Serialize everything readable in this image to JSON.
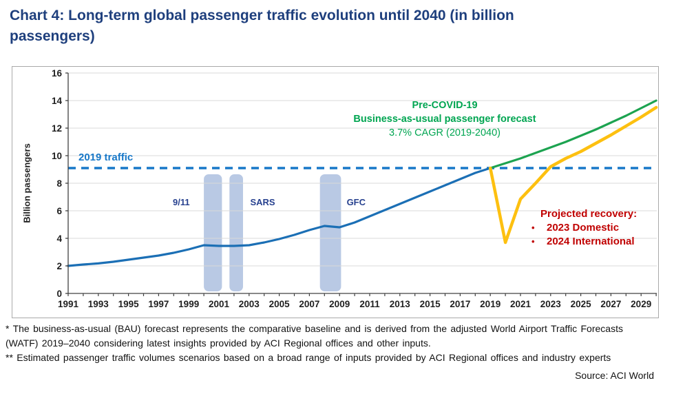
{
  "page": {
    "title": "Chart 4: Long-term global passenger traffic evolution until 2040 (in billion passengers)",
    "footnotes": [
      "* The business-as-usual (BAU) forecast represents the comparative baseline and is derived from the adjusted World Airport Traffic Forecasts (WATF) 2019–2040 considering latest insights provided by ACI Regional offices and other inputs.",
      "** Estimated passenger traffic volumes scenarios based on a broad range of inputs provided by ACI Regional offices and industry experts"
    ],
    "source": "Source: ACI World"
  },
  "chart_data": {
    "type": "line",
    "title": "Long-term global passenger traffic evolution until 2040 (in billion passengers)",
    "xlabel": "",
    "ylabel": "Billion passengers",
    "ylim": [
      0,
      16
    ],
    "ytick_step": 2,
    "x_range": [
      1991,
      2030
    ],
    "x_tick_labels": [
      1991,
      1993,
      1995,
      1997,
      1999,
      2001,
      2003,
      2005,
      2007,
      2009,
      2011,
      2013,
      2015,
      2017,
      2019,
      2021,
      2023,
      2025,
      2027,
      2029
    ],
    "grid": "horizontal-only",
    "legend": "none",
    "colors": {
      "historical": "#1b6fb5",
      "forecast": "#1ca350",
      "recovery": "#fdc010",
      "reference": "#1878c8",
      "band": "#b9c9e4",
      "event_label": "#27418f",
      "forecast_text": "#00a551",
      "recovery_text": "#c00000",
      "title_text": "#1e3f7d"
    },
    "series": [
      {
        "name": "Historical passenger traffic",
        "key": "historical",
        "start_year": 1991,
        "values": [
          2.0,
          2.1,
          2.18,
          2.3,
          2.45,
          2.6,
          2.75,
          2.95,
          3.2,
          3.5,
          3.45,
          3.45,
          3.5,
          3.7,
          3.95,
          4.25,
          4.6,
          4.9,
          4.8,
          5.15,
          5.6,
          6.05,
          6.5,
          6.95,
          7.4,
          7.85,
          8.3,
          8.75,
          9.1
        ]
      },
      {
        "name": "Pre-COVID-19 business-as-usual passenger forecast",
        "key": "forecast",
        "start_year": 2019,
        "values": [
          9.1,
          9.45,
          9.8,
          10.2,
          10.6,
          11.0,
          11.45,
          11.9,
          12.4,
          12.9,
          13.45,
          14.0
        ]
      },
      {
        "name": "Projected recovery",
        "key": "recovery",
        "start_year": 2019,
        "values": [
          9.1,
          3.7,
          6.85,
          8.0,
          9.2,
          9.8,
          10.3,
          10.9,
          11.5,
          12.15,
          12.8,
          13.5
        ]
      }
    ],
    "reference_line": {
      "label": "2019 traffic",
      "value": 9.1,
      "style": "dashed"
    },
    "event_bands": [
      {
        "label": "9/11",
        "from": 2000.0,
        "to": 2001.2,
        "label_year": 1998.5,
        "label_value": 6.65
      },
      {
        "label": "SARS",
        "from": 2001.7,
        "to": 2002.6,
        "label_year": 2003.9,
        "label_value": 6.65
      },
      {
        "label": "GFC",
        "from": 2007.7,
        "to": 2009.1,
        "label_year": 2010.1,
        "label_value": 6.65
      }
    ],
    "band_span": [
      0.15,
      8.65
    ],
    "annotations": {
      "forecast_label": {
        "line1": "Pre-COVID-19",
        "line2": "Business-as-usual passenger forecast",
        "line3": "3.7% CAGR (2019-2040)"
      },
      "recovery_label": {
        "title": "Projected recovery:",
        "bullets": [
          "2023 Domestic",
          "2024 International"
        ]
      }
    }
  }
}
